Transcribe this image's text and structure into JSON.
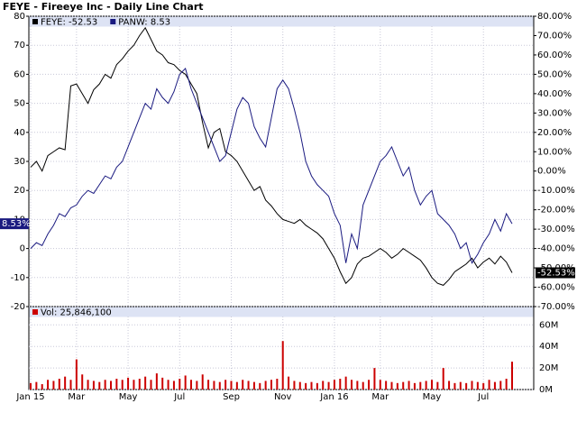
{
  "chart_data": {
    "type": "line",
    "title": "FEYE - Fireeye Inc - Daily Line Chart",
    "categories": [
      "Jan 15",
      null,
      null,
      null,
      null,
      null,
      null,
      null,
      "Mar",
      null,
      null,
      null,
      null,
      null,
      null,
      null,
      null,
      "May",
      null,
      null,
      null,
      null,
      null,
      null,
      null,
      null,
      "Jul",
      null,
      null,
      null,
      null,
      null,
      null,
      null,
      null,
      "Sep",
      null,
      null,
      null,
      null,
      null,
      null,
      null,
      null,
      "Nov",
      null,
      null,
      null,
      null,
      null,
      null,
      null,
      null,
      "Jan 16",
      null,
      null,
      null,
      null,
      null,
      null,
      null,
      "Mar",
      null,
      null,
      null,
      null,
      null,
      null,
      null,
      null,
      "May",
      null,
      null,
      null,
      null,
      null,
      null,
      null,
      null,
      "Jul",
      null,
      null,
      null,
      null,
      null
    ],
    "series": [
      {
        "name": "FEYE: -52.53",
        "color": "#000000",
        "axis": "y2",
        "end_label": "-52.53%",
        "values": [
          2,
          5,
          0,
          8,
          10,
          12,
          11,
          44,
          45,
          40,
          35,
          42,
          45,
          50,
          48,
          55,
          58,
          62,
          65,
          70,
          74,
          68,
          62,
          60,
          56,
          55,
          52,
          50,
          45,
          40,
          25,
          12,
          20,
          22,
          10,
          8,
          5,
          0,
          -5,
          -10,
          -8,
          -15,
          -18,
          -22,
          -25,
          -26,
          -27,
          -25,
          -28,
          -30,
          -32,
          -35,
          -40,
          -45,
          -52,
          -58,
          -55,
          -48,
          -45,
          -44,
          -42,
          -40,
          -42,
          -45,
          -43,
          -40,
          -42,
          -44,
          -46,
          -50,
          -55,
          -58,
          -59,
          -56,
          -52,
          -50,
          -48,
          -45,
          -50,
          -47,
          -45,
          -48,
          -44,
          -47,
          -52.53
        ]
      },
      {
        "name": "PANW: 8.53",
        "color": "#1a1a80",
        "axis": "y",
        "end_label": "8.53%",
        "values": [
          0,
          2,
          1,
          5,
          8,
          12,
          11,
          14,
          15,
          18,
          20,
          19,
          22,
          25,
          24,
          28,
          30,
          35,
          40,
          45,
          50,
          48,
          55,
          52,
          50,
          54,
          60,
          62,
          55,
          50,
          45,
          40,
          35,
          30,
          32,
          40,
          48,
          52,
          50,
          42,
          38,
          35,
          45,
          55,
          58,
          55,
          48,
          40,
          30,
          25,
          22,
          20,
          18,
          12,
          8,
          -5,
          5,
          0,
          15,
          20,
          25,
          30,
          32,
          35,
          30,
          25,
          28,
          20,
          15,
          18,
          20,
          12,
          10,
          8,
          5,
          0,
          2,
          -5,
          -2,
          2,
          5,
          10,
          6,
          12,
          8.53
        ]
      }
    ],
    "ylim": [
      -20,
      80
    ],
    "yticks": [
      -20,
      -10,
      0,
      10,
      20,
      30,
      40,
      50,
      60,
      70,
      80
    ],
    "y2lim": [
      -70,
      80
    ],
    "y2ticks": [
      {
        "value": -70,
        "label": "-70.00%"
      },
      {
        "value": -60,
        "label": "-60.00%"
      },
      {
        "value": -50,
        "label": "-50.00%"
      },
      {
        "value": -40,
        "label": "-40.00%"
      },
      {
        "value": -30,
        "label": "-30.00%"
      },
      {
        "value": -20,
        "label": "-20.00%"
      },
      {
        "value": -10,
        "label": "-10.00%"
      },
      {
        "value": 0,
        "label": "0.00%"
      },
      {
        "value": 10,
        "label": "10.00%"
      },
      {
        "value": 20,
        "label": "20.00%"
      },
      {
        "value": 30,
        "label": "30.00%"
      },
      {
        "value": 40,
        "label": "40.00%"
      },
      {
        "value": 50,
        "label": "50.00%"
      },
      {
        "value": 60,
        "label": "60.00%"
      },
      {
        "value": 70,
        "label": "70.00%"
      },
      {
        "value": 80,
        "label": "80.00%"
      }
    ],
    "grid": true,
    "volume": {
      "type": "bar",
      "name": "Vol: 25,846,100",
      "color": "#cc0000",
      "values": [
        6000000,
        7000000,
        5000000,
        9000000,
        8000000,
        10000000,
        12000000,
        9000000,
        28000000,
        14000000,
        9000000,
        8000000,
        7000000,
        9000000,
        8000000,
        10000000,
        9000000,
        11000000,
        9000000,
        10000000,
        12000000,
        9000000,
        15000000,
        11000000,
        9000000,
        8000000,
        10000000,
        13000000,
        9000000,
        8000000,
        14000000,
        9000000,
        8000000,
        7000000,
        9000000,
        8000000,
        7000000,
        9000000,
        8000000,
        7000000,
        6000000,
        8000000,
        9000000,
        10000000,
        45000000,
        12000000,
        8000000,
        7000000,
        6000000,
        7000000,
        6000000,
        8000000,
        7000000,
        9000000,
        10000000,
        12000000,
        9000000,
        8000000,
        7000000,
        9000000,
        20000000,
        9000000,
        8000000,
        7000000,
        6000000,
        7000000,
        8000000,
        6000000,
        7000000,
        8000000,
        9000000,
        7000000,
        20000000,
        8000000,
        6000000,
        7000000,
        6000000,
        8000000,
        7000000,
        6000000,
        9000000,
        7000000,
        8000000,
        10000000,
        25846100
      ],
      "ylim": [
        0,
        77000000
      ],
      "yticks": [
        {
          "value": 0,
          "label": "0M"
        },
        {
          "value": 20000000,
          "label": "20M"
        },
        {
          "value": 40000000,
          "label": "40M"
        },
        {
          "value": 60000000,
          "label": "60M"
        }
      ]
    }
  }
}
